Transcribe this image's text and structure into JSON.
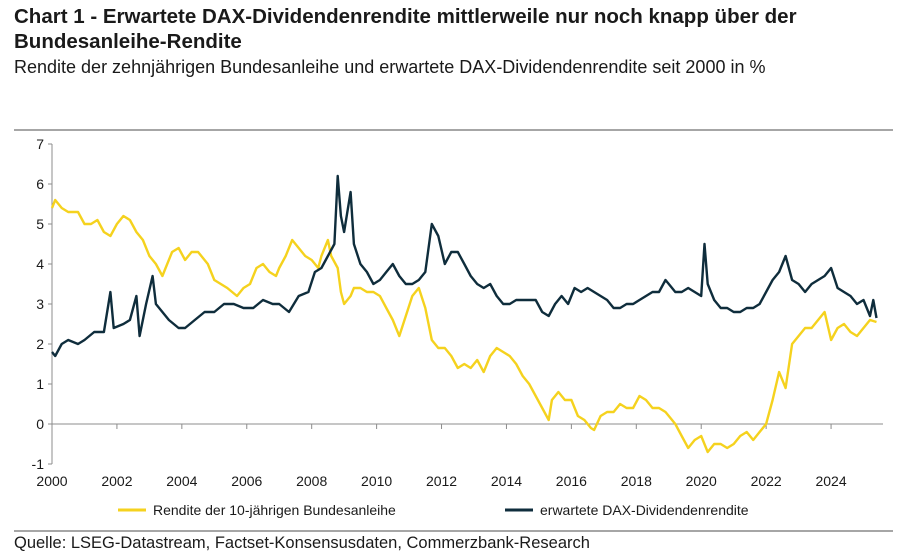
{
  "title": "Chart 1 - Erwartete DAX-Dividendenrendite mittlerweile nur noch knapp über der Bundesanleihe-Rendite",
  "subtitle": "Rendite der zehnjährigen Bundesanleihe und erwartete DAX-Dividendenrendite seit 2000 in %",
  "source": "Quelle: LSEG-Datastream, Factset-Konsensusdaten, Commerzbank-Research",
  "colors": {
    "bund": "#f5d21e",
    "dax": "#0f2d3c",
    "axis": "#8c8c8c"
  },
  "chart_data": {
    "type": "line",
    "title": "Chart 1 - Erwartete DAX-Dividendenrendite mittlerweile nur noch knapp über der Bundesanleihe-Rendite",
    "xlabel": "",
    "ylabel": "%",
    "xlim": [
      2000,
      2025.6
    ],
    "ylim": [
      -1,
      7
    ],
    "yticks": [
      "-1",
      "0",
      "1",
      "2",
      "3",
      "4",
      "5",
      "6",
      "7"
    ],
    "xticks": [
      "2000",
      "2002",
      "2004",
      "2006",
      "2008",
      "2010",
      "2012",
      "2014",
      "2016",
      "2018",
      "2020",
      "2022",
      "2024"
    ],
    "grid": false,
    "legend_position": "bottom",
    "series": [
      {
        "name": "Rendite der 10-jährigen Bundesanleihe",
        "color": "#f5d21e",
        "points": [
          [
            2000.0,
            5.4
          ],
          [
            2000.1,
            5.6
          ],
          [
            2000.3,
            5.4
          ],
          [
            2000.5,
            5.3
          ],
          [
            2000.8,
            5.3
          ],
          [
            2001.0,
            5.0
          ],
          [
            2001.2,
            5.0
          ],
          [
            2001.4,
            5.1
          ],
          [
            2001.6,
            4.8
          ],
          [
            2001.8,
            4.7
          ],
          [
            2002.0,
            5.0
          ],
          [
            2002.2,
            5.2
          ],
          [
            2002.4,
            5.1
          ],
          [
            2002.6,
            4.8
          ],
          [
            2002.8,
            4.6
          ],
          [
            2003.0,
            4.2
          ],
          [
            2003.2,
            4.0
          ],
          [
            2003.4,
            3.7
          ],
          [
            2003.5,
            3.9
          ],
          [
            2003.7,
            4.3
          ],
          [
            2003.9,
            4.4
          ],
          [
            2004.1,
            4.1
          ],
          [
            2004.3,
            4.3
          ],
          [
            2004.5,
            4.3
          ],
          [
            2004.8,
            4.0
          ],
          [
            2005.0,
            3.6
          ],
          [
            2005.2,
            3.5
          ],
          [
            2005.4,
            3.4
          ],
          [
            2005.7,
            3.2
          ],
          [
            2005.9,
            3.4
          ],
          [
            2006.1,
            3.5
          ],
          [
            2006.3,
            3.9
          ],
          [
            2006.5,
            4.0
          ],
          [
            2006.7,
            3.8
          ],
          [
            2006.9,
            3.7
          ],
          [
            2007.0,
            3.9
          ],
          [
            2007.2,
            4.2
          ],
          [
            2007.4,
            4.6
          ],
          [
            2007.6,
            4.4
          ],
          [
            2007.8,
            4.2
          ],
          [
            2008.0,
            4.1
          ],
          [
            2008.2,
            3.9
          ],
          [
            2008.3,
            4.2
          ],
          [
            2008.5,
            4.6
          ],
          [
            2008.6,
            4.2
          ],
          [
            2008.8,
            3.9
          ],
          [
            2008.9,
            3.3
          ],
          [
            2009.0,
            3.0
          ],
          [
            2009.2,
            3.2
          ],
          [
            2009.3,
            3.4
          ],
          [
            2009.5,
            3.4
          ],
          [
            2009.7,
            3.3
          ],
          [
            2009.9,
            3.3
          ],
          [
            2010.1,
            3.2
          ],
          [
            2010.3,
            2.9
          ],
          [
            2010.5,
            2.6
          ],
          [
            2010.7,
            2.2
          ],
          [
            2010.9,
            2.7
          ],
          [
            2011.1,
            3.2
          ],
          [
            2011.3,
            3.4
          ],
          [
            2011.5,
            2.9
          ],
          [
            2011.7,
            2.1
          ],
          [
            2011.9,
            1.9
          ],
          [
            2012.1,
            1.9
          ],
          [
            2012.3,
            1.7
          ],
          [
            2012.5,
            1.4
          ],
          [
            2012.7,
            1.5
          ],
          [
            2012.9,
            1.4
          ],
          [
            2013.1,
            1.6
          ],
          [
            2013.3,
            1.3
          ],
          [
            2013.5,
            1.7
          ],
          [
            2013.7,
            1.9
          ],
          [
            2013.9,
            1.8
          ],
          [
            2014.1,
            1.7
          ],
          [
            2014.3,
            1.5
          ],
          [
            2014.5,
            1.2
          ],
          [
            2014.7,
            1.0
          ],
          [
            2014.9,
            0.7
          ],
          [
            2015.1,
            0.4
          ],
          [
            2015.3,
            0.1
          ],
          [
            2015.4,
            0.6
          ],
          [
            2015.6,
            0.8
          ],
          [
            2015.8,
            0.6
          ],
          [
            2016.0,
            0.6
          ],
          [
            2016.2,
            0.2
          ],
          [
            2016.4,
            0.1
          ],
          [
            2016.6,
            -0.1
          ],
          [
            2016.7,
            -0.15
          ],
          [
            2016.9,
            0.2
          ],
          [
            2017.1,
            0.3
          ],
          [
            2017.3,
            0.3
          ],
          [
            2017.5,
            0.5
          ],
          [
            2017.7,
            0.4
          ],
          [
            2017.9,
            0.4
          ],
          [
            2018.1,
            0.7
          ],
          [
            2018.3,
            0.6
          ],
          [
            2018.5,
            0.4
          ],
          [
            2018.7,
            0.4
          ],
          [
            2018.9,
            0.3
          ],
          [
            2019.0,
            0.2
          ],
          [
            2019.2,
            0.0
          ],
          [
            2019.4,
            -0.3
          ],
          [
            2019.6,
            -0.6
          ],
          [
            2019.8,
            -0.4
          ],
          [
            2020.0,
            -0.3
          ],
          [
            2020.2,
            -0.7
          ],
          [
            2020.4,
            -0.5
          ],
          [
            2020.6,
            -0.5
          ],
          [
            2020.8,
            -0.6
          ],
          [
            2021.0,
            -0.5
          ],
          [
            2021.2,
            -0.3
          ],
          [
            2021.4,
            -0.2
          ],
          [
            2021.6,
            -0.4
          ],
          [
            2021.8,
            -0.2
          ],
          [
            2022.0,
            0.0
          ],
          [
            2022.2,
            0.6
          ],
          [
            2022.4,
            1.3
          ],
          [
            2022.6,
            0.9
          ],
          [
            2022.8,
            2.0
          ],
          [
            2023.0,
            2.2
          ],
          [
            2023.2,
            2.4
          ],
          [
            2023.4,
            2.4
          ],
          [
            2023.6,
            2.6
          ],
          [
            2023.8,
            2.8
          ],
          [
            2024.0,
            2.1
          ],
          [
            2024.2,
            2.4
          ],
          [
            2024.4,
            2.5
          ],
          [
            2024.6,
            2.3
          ],
          [
            2024.8,
            2.2
          ],
          [
            2025.0,
            2.4
          ],
          [
            2025.2,
            2.6
          ],
          [
            2025.4,
            2.55
          ]
        ]
      },
      {
        "name": "erwartete DAX-Dividendenrendite",
        "color": "#0f2d3c",
        "points": [
          [
            2000.0,
            1.8
          ],
          [
            2000.1,
            1.7
          ],
          [
            2000.3,
            2.0
          ],
          [
            2000.5,
            2.1
          ],
          [
            2000.8,
            2.0
          ],
          [
            2001.0,
            2.1
          ],
          [
            2001.3,
            2.3
          ],
          [
            2001.6,
            2.3
          ],
          [
            2001.8,
            3.3
          ],
          [
            2001.9,
            2.4
          ],
          [
            2002.2,
            2.5
          ],
          [
            2002.4,
            2.6
          ],
          [
            2002.6,
            3.2
          ],
          [
            2002.7,
            2.2
          ],
          [
            2002.9,
            3.0
          ],
          [
            2003.1,
            3.7
          ],
          [
            2003.2,
            3.0
          ],
          [
            2003.4,
            2.8
          ],
          [
            2003.6,
            2.6
          ],
          [
            2003.9,
            2.4
          ],
          [
            2004.1,
            2.4
          ],
          [
            2004.4,
            2.6
          ],
          [
            2004.7,
            2.8
          ],
          [
            2005.0,
            2.8
          ],
          [
            2005.3,
            3.0
          ],
          [
            2005.6,
            3.0
          ],
          [
            2005.9,
            2.9
          ],
          [
            2006.2,
            2.9
          ],
          [
            2006.5,
            3.1
          ],
          [
            2006.8,
            3.0
          ],
          [
            2007.0,
            3.0
          ],
          [
            2007.3,
            2.8
          ],
          [
            2007.6,
            3.2
          ],
          [
            2007.9,
            3.3
          ],
          [
            2008.1,
            3.8
          ],
          [
            2008.3,
            3.9
          ],
          [
            2008.5,
            4.2
          ],
          [
            2008.7,
            4.5
          ],
          [
            2008.8,
            6.2
          ],
          [
            2008.9,
            5.2
          ],
          [
            2009.0,
            4.8
          ],
          [
            2009.2,
            5.8
          ],
          [
            2009.3,
            4.5
          ],
          [
            2009.5,
            4.0
          ],
          [
            2009.7,
            3.8
          ],
          [
            2009.9,
            3.5
          ],
          [
            2010.1,
            3.6
          ],
          [
            2010.3,
            3.8
          ],
          [
            2010.5,
            4.0
          ],
          [
            2010.7,
            3.7
          ],
          [
            2010.9,
            3.5
          ],
          [
            2011.1,
            3.5
          ],
          [
            2011.3,
            3.6
          ],
          [
            2011.5,
            3.8
          ],
          [
            2011.7,
            5.0
          ],
          [
            2011.9,
            4.7
          ],
          [
            2012.1,
            4.0
          ],
          [
            2012.3,
            4.3
          ],
          [
            2012.5,
            4.3
          ],
          [
            2012.7,
            4.0
          ],
          [
            2012.9,
            3.7
          ],
          [
            2013.1,
            3.5
          ],
          [
            2013.3,
            3.4
          ],
          [
            2013.5,
            3.5
          ],
          [
            2013.7,
            3.2
          ],
          [
            2013.9,
            3.0
          ],
          [
            2014.1,
            3.0
          ],
          [
            2014.3,
            3.1
          ],
          [
            2014.5,
            3.1
          ],
          [
            2014.7,
            3.1
          ],
          [
            2014.9,
            3.1
          ],
          [
            2015.1,
            2.8
          ],
          [
            2015.3,
            2.7
          ],
          [
            2015.5,
            3.0
          ],
          [
            2015.7,
            3.2
          ],
          [
            2015.9,
            3.0
          ],
          [
            2016.1,
            3.4
          ],
          [
            2016.3,
            3.3
          ],
          [
            2016.5,
            3.4
          ],
          [
            2016.7,
            3.3
          ],
          [
            2016.9,
            3.2
          ],
          [
            2017.1,
            3.1
          ],
          [
            2017.3,
            2.9
          ],
          [
            2017.5,
            2.9
          ],
          [
            2017.7,
            3.0
          ],
          [
            2017.9,
            3.0
          ],
          [
            2018.1,
            3.1
          ],
          [
            2018.3,
            3.2
          ],
          [
            2018.5,
            3.3
          ],
          [
            2018.7,
            3.3
          ],
          [
            2018.9,
            3.6
          ],
          [
            2019.0,
            3.5
          ],
          [
            2019.2,
            3.3
          ],
          [
            2019.4,
            3.3
          ],
          [
            2019.6,
            3.4
          ],
          [
            2019.8,
            3.3
          ],
          [
            2020.0,
            3.2
          ],
          [
            2020.1,
            4.5
          ],
          [
            2020.2,
            3.5
          ],
          [
            2020.4,
            3.1
          ],
          [
            2020.6,
            2.9
          ],
          [
            2020.8,
            2.9
          ],
          [
            2021.0,
            2.8
          ],
          [
            2021.2,
            2.8
          ],
          [
            2021.4,
            2.9
          ],
          [
            2021.6,
            2.9
          ],
          [
            2021.8,
            3.0
          ],
          [
            2022.0,
            3.3
          ],
          [
            2022.2,
            3.6
          ],
          [
            2022.4,
            3.8
          ],
          [
            2022.6,
            4.2
          ],
          [
            2022.8,
            3.6
          ],
          [
            2023.0,
            3.5
          ],
          [
            2023.2,
            3.3
          ],
          [
            2023.4,
            3.5
          ],
          [
            2023.6,
            3.6
          ],
          [
            2023.8,
            3.7
          ],
          [
            2024.0,
            3.9
          ],
          [
            2024.2,
            3.4
          ],
          [
            2024.4,
            3.3
          ],
          [
            2024.6,
            3.2
          ],
          [
            2024.8,
            3.0
          ],
          [
            2025.0,
            3.1
          ],
          [
            2025.2,
            2.7
          ],
          [
            2025.3,
            3.1
          ],
          [
            2025.4,
            2.65
          ]
        ]
      }
    ]
  }
}
